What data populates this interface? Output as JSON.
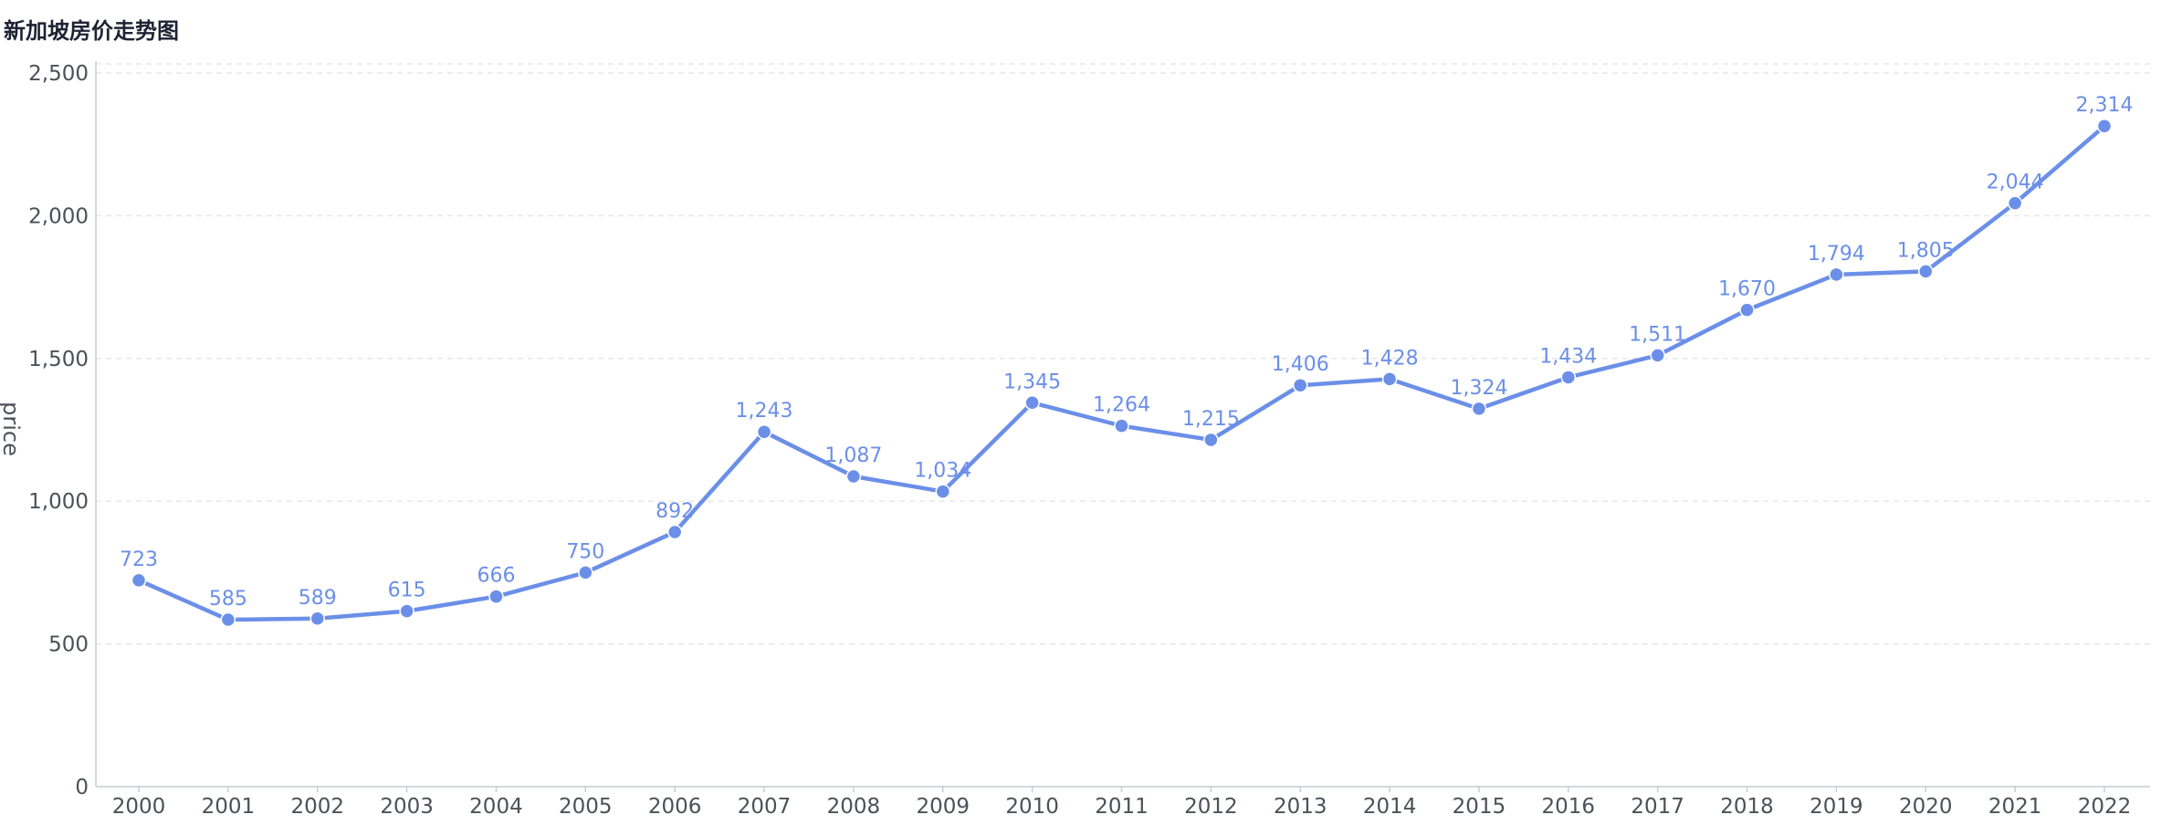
{
  "chart_data": {
    "type": "line",
    "title": "新加坡房价走势图",
    "xlabel": "",
    "ylabel": "price",
    "categories": [
      "2000",
      "2001",
      "2002",
      "2003",
      "2004",
      "2005",
      "2006",
      "2007",
      "2008",
      "2009",
      "2010",
      "2011",
      "2012",
      "2013",
      "2014",
      "2015",
      "2016",
      "2017",
      "2018",
      "2019",
      "2020",
      "2021",
      "2022"
    ],
    "series": [
      {
        "values": [
          723,
          585,
          589,
          615,
          666,
          750,
          892,
          1243,
          1087,
          1034,
          1345,
          1264,
          1215,
          1406,
          1428,
          1324,
          1434,
          1511,
          1670,
          1794,
          1805,
          2044,
          2314
        ],
        "data_labels": [
          "723",
          "585",
          "589",
          "615",
          "666",
          "750",
          "892",
          "1,243",
          "1,087",
          "1,034",
          "1,345",
          "1,264",
          "1,215",
          "1,406",
          "1,428",
          "1,324",
          "1,434",
          "1,511",
          "1,670",
          "1,794",
          "1,805",
          "2,044",
          "2,314"
        ]
      }
    ],
    "ylim": [
      0,
      2500
    ],
    "y_ticks": [
      0,
      500,
      1000,
      1500,
      2000,
      2500
    ],
    "y_tick_labels": [
      "0",
      "500",
      "1,000",
      "1,500",
      "2,000",
      "2,500"
    ],
    "grid": "horizontal-dashed",
    "legend": "none",
    "colors": {
      "line": "#6b8fe8",
      "grid": "#e5e7eb",
      "axis": "#c9ccd3",
      "tick_text": "#4c5058",
      "title": "#1d2333"
    }
  }
}
